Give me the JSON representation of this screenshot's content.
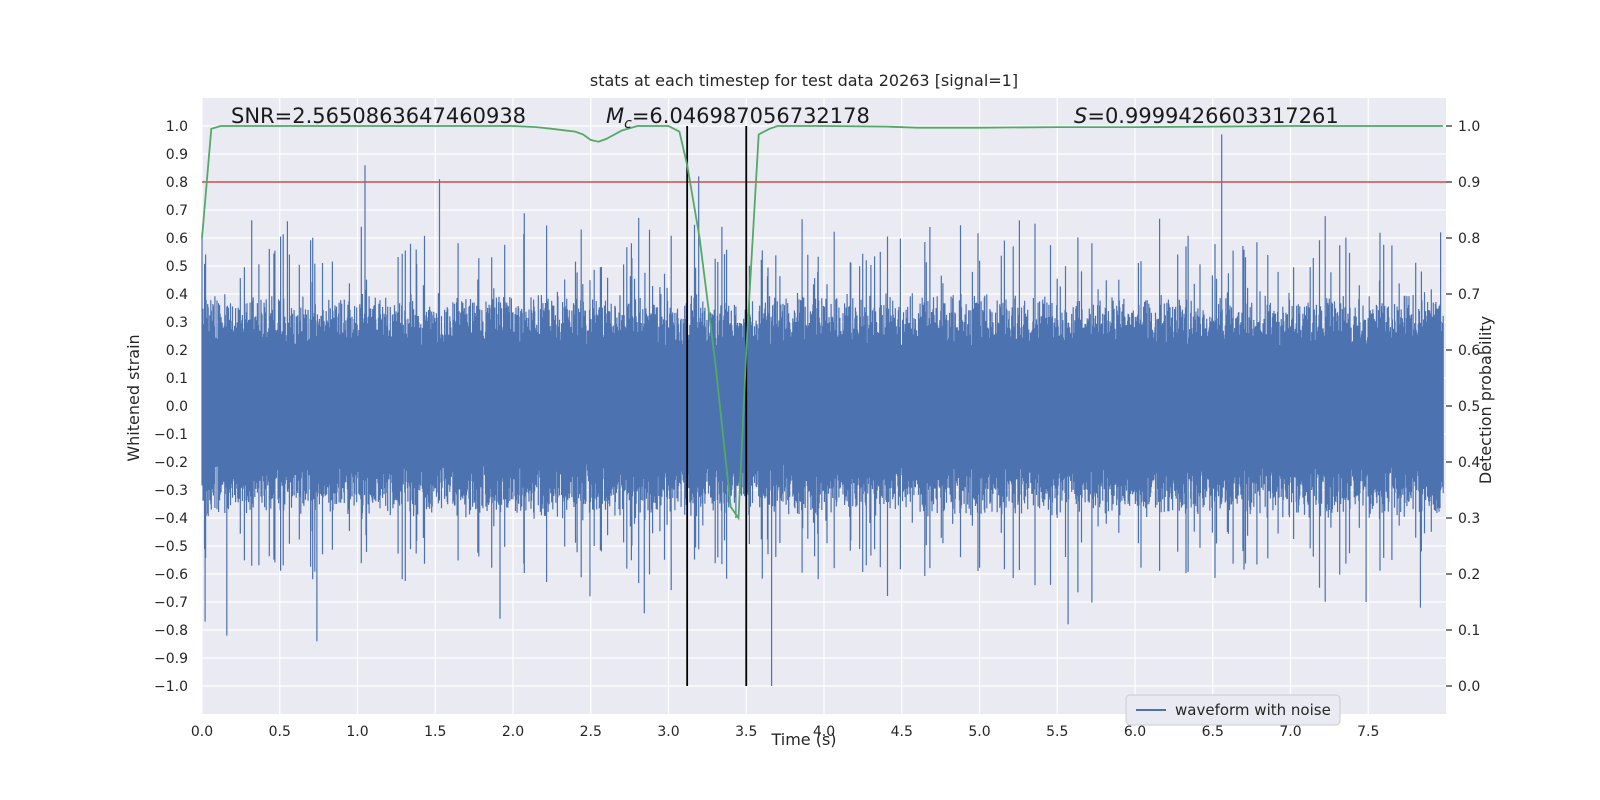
{
  "chart_data": {
    "type": "line",
    "title": "stats at each timestep for test data 20263 [signal=1]",
    "xlabel": "Time (s)",
    "ylabel_left": "Whitened strain",
    "ylabel_right": "Detection probability",
    "xlim": [
      0.0,
      8.0
    ],
    "ylim_left": [
      -1.1,
      1.1
    ],
    "ylim_right": [
      -0.05,
      1.05
    ],
    "xticks": [
      "0.0",
      "0.5",
      "1.0",
      "1.5",
      "2.0",
      "2.5",
      "3.0",
      "3.5",
      "4.0",
      "4.5",
      "5.0",
      "5.5",
      "6.0",
      "6.5",
      "7.0",
      "7.5"
    ],
    "yticks_left": [
      "1.0",
      "0.9",
      "0.8",
      "0.7",
      "0.6",
      "0.5",
      "0.4",
      "0.3",
      "0.2",
      "0.1",
      "0.0",
      "−0.1",
      "−0.2",
      "−0.3",
      "−0.4",
      "−0.5",
      "−0.6",
      "−0.7",
      "−0.8",
      "−0.9",
      "−1.0"
    ],
    "yticks_right": [
      "1.0",
      "0.9",
      "0.8",
      "0.7",
      "0.6",
      "0.5",
      "0.4",
      "0.3",
      "0.2",
      "0.1",
      "0.0"
    ],
    "annotations": {
      "snr": "SNR=2.5650863647460938",
      "mc_symbol": "M",
      "mc_sub": "c",
      "mc_value": "=6.046987056732178",
      "s_symbol": "S",
      "s_value": "=0.9999426603317261"
    },
    "threshold": 0.9,
    "event_window": [
      3.12,
      3.5
    ],
    "series": [
      {
        "name": "waveform with noise",
        "axis": "left",
        "color": "#4c72b0",
        "style": "dense noise, amplitude mostly within ±0.35 with spikes to ±0.85",
        "spikes": [
          {
            "t": 0.0,
            "v": 0.62
          },
          {
            "t": 0.02,
            "v": -0.77
          },
          {
            "t": 0.16,
            "v": -0.82
          },
          {
            "t": 0.55,
            "v": 0.66
          },
          {
            "t": 0.74,
            "v": -0.84
          },
          {
            "t": 1.05,
            "v": 0.86
          },
          {
            "t": 1.53,
            "v": 0.81
          },
          {
            "t": 1.92,
            "v": -0.76
          },
          {
            "t": 2.5,
            "v": -0.68
          },
          {
            "t": 2.85,
            "v": -0.74
          },
          {
            "t": 3.2,
            "v": 0.82
          },
          {
            "t": 3.67,
            "v": -1.0
          },
          {
            "t": 5.58,
            "v": -0.78
          },
          {
            "t": 6.57,
            "v": 0.97
          },
          {
            "t": 7.5,
            "v": -0.7
          },
          {
            "t": 7.85,
            "v": -0.72
          },
          {
            "t": 7.98,
            "v": 0.62
          }
        ]
      },
      {
        "name": "detection probability",
        "axis": "right",
        "color": "#55a868",
        "x": [
          0.0,
          0.06,
          0.12,
          0.3,
          0.6,
          1.0,
          1.5,
          2.0,
          2.15,
          2.25,
          2.4,
          2.45,
          2.5,
          2.55,
          2.6,
          2.7,
          2.8,
          2.9,
          3.0,
          3.07,
          3.12,
          3.2,
          3.3,
          3.35,
          3.4,
          3.45,
          3.5,
          3.58,
          3.65,
          3.7,
          3.8,
          4.0,
          4.4,
          4.6,
          5.0,
          5.5,
          6.0,
          6.5,
          7.0,
          7.5,
          7.98
        ],
        "y": [
          0.8,
          0.995,
          1.0,
          1.0,
          1.0,
          1.0,
          1.0,
          1.0,
          0.998,
          0.995,
          0.99,
          0.985,
          0.975,
          0.972,
          0.977,
          0.992,
          1.0,
          1.0,
          1.0,
          0.99,
          0.93,
          0.8,
          0.58,
          0.45,
          0.32,
          0.3,
          0.6,
          0.985,
          0.995,
          1.0,
          1.0,
          1.0,
          0.999,
          0.997,
          0.997,
          0.998,
          0.998,
          0.999,
          1.0,
          1.0,
          1.0
        ]
      },
      {
        "name": "threshold",
        "axis": "right",
        "color": "#c44e52",
        "value": 0.9
      }
    ],
    "legend": [
      {
        "label": "waveform with noise",
        "color": "#4c72b0",
        "position": "lower-right"
      }
    ],
    "colors": {
      "plot_bg": "#eaeaf2",
      "grid": "#ffffff",
      "text": "#262626",
      "vline": "#000000"
    }
  }
}
